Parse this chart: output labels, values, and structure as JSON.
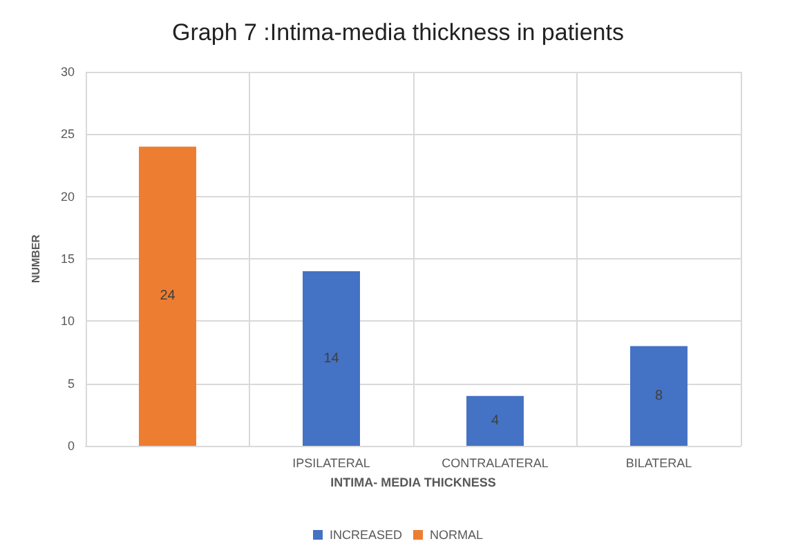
{
  "chart_data": {
    "type": "bar",
    "title": "Graph 7 :Intima-media thickness in patients",
    "xlabel": "INTIMA- MEDIA THICKNESS",
    "ylabel": "NUMBER",
    "categories": [
      null,
      "IPSILATERAL",
      "CONTRALATERAL",
      "BILATERAL"
    ],
    "series": [
      {
        "name": "INCREASED",
        "color": "#4472c4",
        "values": [
          null,
          14,
          4,
          8
        ]
      },
      {
        "name": "NORMAL",
        "color": "#ed7d31",
        "values": [
          24,
          null,
          null,
          null
        ]
      }
    ],
    "stacked": true,
    "ylim": [
      0,
      30
    ],
    "yticks": [
      0,
      5,
      10,
      15,
      20,
      25,
      30
    ],
    "grid": true,
    "legend": "bottom",
    "data_labels": true
  }
}
